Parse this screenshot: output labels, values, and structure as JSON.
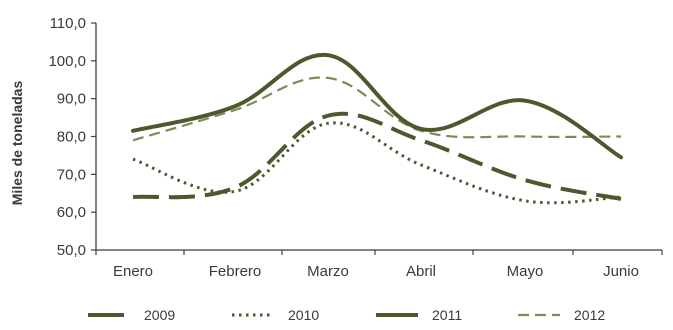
{
  "chart_data": {
    "type": "line",
    "title": "",
    "xlabel": "",
    "ylabel": "Miles de toneladas",
    "ylim": [
      50,
      110
    ],
    "ytick_labels": [
      "50,0",
      "60,0",
      "70,0",
      "80,0",
      "90,0",
      "100,0",
      "110,0"
    ],
    "categories": [
      "Enero",
      "Febrero",
      "Marzo",
      "Abril",
      "Mayo",
      "Junio"
    ],
    "grid": false,
    "legend_position": "bottom",
    "series": [
      {
        "name": "2009",
        "values": [
          64.0,
          66.5,
          85.5,
          79.0,
          68.5,
          63.5
        ],
        "style": "long-dash",
        "color": "#4a5a2e"
      },
      {
        "name": "2010",
        "values": [
          74.0,
          65.5,
          83.5,
          72.5,
          63.0,
          64.0
        ],
        "style": "dotted",
        "color": "#4a5a2e"
      },
      {
        "name": "2011",
        "values": [
          81.5,
          88.0,
          101.5,
          82.0,
          89.5,
          74.5
        ],
        "style": "solid",
        "color": "#4a5a2e"
      },
      {
        "name": "2012",
        "values": [
          79.0,
          87.0,
          95.5,
          81.5,
          80.0,
          80.0
        ],
        "style": "dashed",
        "color": "#7d8a5a"
      }
    ]
  }
}
